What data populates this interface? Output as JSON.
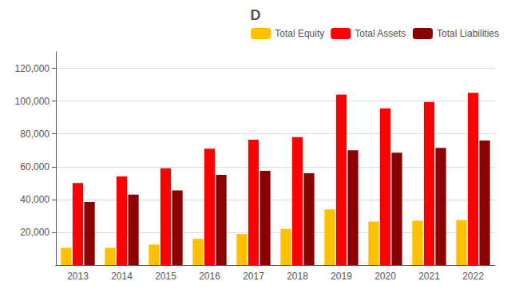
{
  "chart_data": {
    "type": "bar",
    "title": "D",
    "categories": [
      "2013",
      "2014",
      "2015",
      "2016",
      "2017",
      "2018",
      "2019",
      "2020",
      "2021",
      "2022"
    ],
    "series": [
      {
        "name": "Total Equity",
        "color": "#FFC000",
        "values": [
          10500,
          10500,
          12500,
          16000,
          19000,
          22000,
          34000,
          26500,
          27000,
          27500
        ]
      },
      {
        "name": "Total Assets",
        "color": "#FF0000",
        "values": [
          50000,
          54000,
          59000,
          71000,
          76500,
          78000,
          104000,
          95500,
          99500,
          105000
        ]
      },
      {
        "name": "Total Liabilities",
        "color": "#8B0000",
        "values": [
          38500,
          43000,
          45500,
          55000,
          57500,
          56000,
          70000,
          68500,
          71500,
          76000
        ]
      }
    ],
    "ylim": [
      0,
      130000
    ],
    "yticks": [
      {
        "value": 20000,
        "label": "20,000"
      },
      {
        "value": 40000,
        "label": "40,000"
      },
      {
        "value": 60000,
        "label": "60,000"
      },
      {
        "value": 80000,
        "label": "80,000"
      },
      {
        "value": 100000,
        "label": "100,000"
      },
      {
        "value": 120000,
        "label": "120,000"
      }
    ],
    "grid": true,
    "legend": "upper right"
  }
}
